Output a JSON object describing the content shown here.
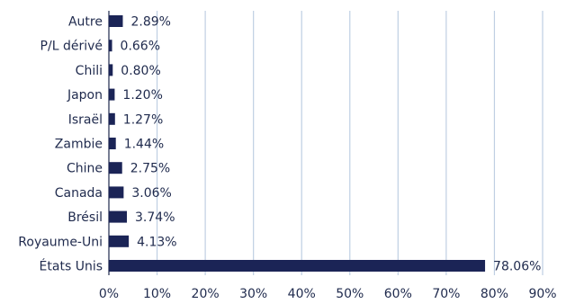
{
  "chart_data": {
    "type": "bar",
    "orientation": "horizontal",
    "categories": [
      "Autre",
      "P/L dérivé",
      "Chili",
      "Japon",
      "Israël",
      "Zambie",
      "Chine",
      "Canada",
      "Brésil",
      "Royaume-Uni",
      "États Unis"
    ],
    "values": [
      2.89,
      0.66,
      0.8,
      1.2,
      1.27,
      1.44,
      2.75,
      3.06,
      3.74,
      4.13,
      78.06
    ],
    "data_labels": [
      "2.89%",
      "0.66%",
      "0.80%",
      "1.20%",
      "1.27%",
      "1.44%",
      "2.75%",
      "3.06%",
      "3.74%",
      "4.13%",
      "78.06%"
    ],
    "x_ticks": [
      "0%",
      "10%",
      "20%",
      "30%",
      "40%",
      "50%",
      "60%",
      "70%",
      "80%",
      "90%"
    ],
    "xlim": [
      0,
      90
    ],
    "grid": "vertical",
    "title": "",
    "xlabel": "",
    "ylabel": "",
    "colors": {
      "bar": "#1b2456",
      "grid": "#bfcfe3",
      "text": "#1f2a4d"
    }
  }
}
